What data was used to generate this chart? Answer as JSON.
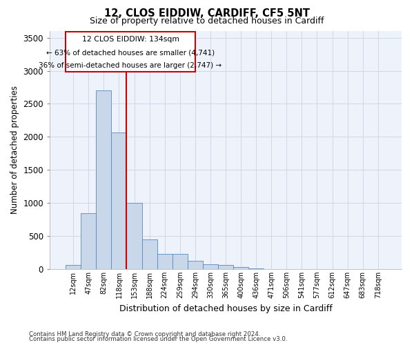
{
  "title1": "12, CLOS EIDDIW, CARDIFF, CF5 5NT",
  "title2": "Size of property relative to detached houses in Cardiff",
  "xlabel": "Distribution of detached houses by size in Cardiff",
  "ylabel": "Number of detached properties",
  "categories": [
    "12sqm",
    "47sqm",
    "82sqm",
    "118sqm",
    "153sqm",
    "188sqm",
    "224sqm",
    "259sqm",
    "294sqm",
    "330sqm",
    "365sqm",
    "400sqm",
    "436sqm",
    "471sqm",
    "506sqm",
    "541sqm",
    "577sqm",
    "612sqm",
    "647sqm",
    "683sqm",
    "718sqm"
  ],
  "bar_values": [
    60,
    850,
    2700,
    2070,
    1000,
    450,
    230,
    230,
    130,
    70,
    60,
    35,
    10,
    5,
    2,
    0,
    0,
    0,
    0,
    0,
    0
  ],
  "bar_color": "#c8d8ea",
  "bar_edgecolor": "#5588bb",
  "red_line_x": 3.5,
  "red_line_color": "#cc0000",
  "annotation_box_edgecolor": "#cc0000",
  "annotation_label": "12 CLOS EIDDIW: 134sqm",
  "annotation_line1": "← 63% of detached houses are smaller (4,741)",
  "annotation_line2": "36% of semi-detached houses are larger (2,747) →",
  "ylim": [
    0,
    3600
  ],
  "yticks": [
    0,
    500,
    1000,
    1500,
    2000,
    2500,
    3000,
    3500
  ],
  "grid_color": "#d0d8e8",
  "bg_color": "#eef2fa",
  "footnote1": "Contains HM Land Registry data © Crown copyright and database right 2024.",
  "footnote2": "Contains public sector information licensed under the Open Government Licence v3.0."
}
